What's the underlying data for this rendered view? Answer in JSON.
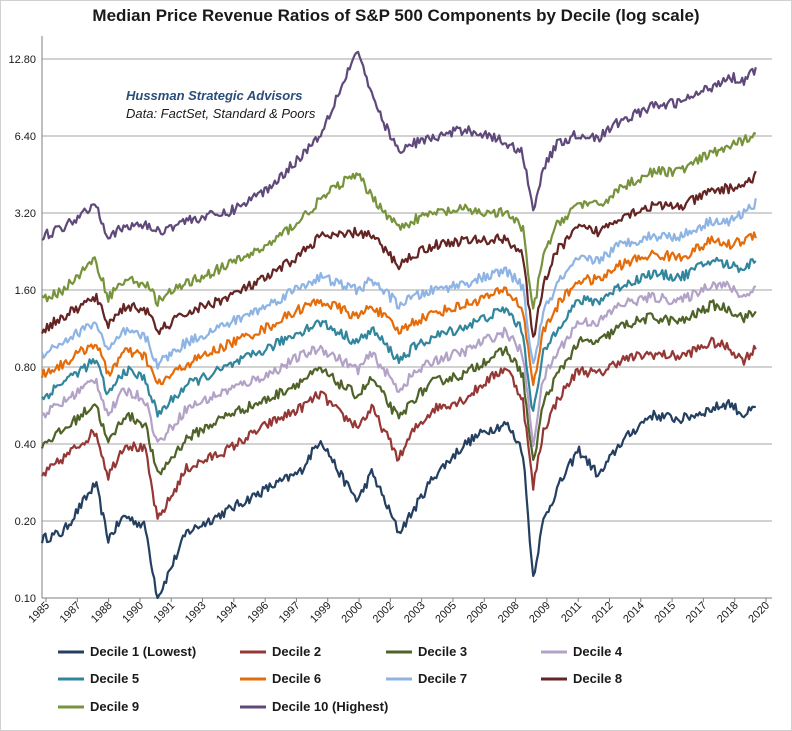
{
  "chart_data": {
    "type": "line",
    "title": "Median Price Revenue Ratios of S&P 500 Components by Decile (log scale)",
    "annotations": [
      "Hussman Strategic Advisors",
      "Data: FactSet, Standard & Poors"
    ],
    "yscale": "log",
    "ylim": [
      0.1,
      12.8
    ],
    "yticks": [
      "0.10",
      "0.20",
      "0.40",
      "0.80",
      "1.60",
      "3.20",
      "6.40",
      "12.80"
    ],
    "xticks": [
      "1985",
      "1987",
      "1988",
      "1990",
      "1991",
      "1993",
      "1994",
      "1996",
      "1997",
      "1999",
      "2000",
      "2002",
      "2003",
      "2005",
      "2006",
      "2008",
      "2009",
      "2011",
      "2012",
      "2014",
      "2015",
      "2017",
      "2018",
      "2020"
    ],
    "xlim": [
      1985.0,
      2019.9
    ],
    "grid": "horizontal",
    "legend_position": "bottom",
    "x": [
      1985.0,
      1986.0,
      1987.6,
      1988.2,
      1989.0,
      1990.0,
      1990.6,
      1992.0,
      1994.0,
      1996.0,
      1997.5,
      1998.5,
      1999.5,
      2000.3,
      2001.0,
      2002.3,
      2003.0,
      2004.0,
      2005.5,
      2006.5,
      2007.5,
      2008.3,
      2008.8,
      2009.3,
      2010.0,
      2011.0,
      2012.0,
      2013.0,
      2014.5,
      2016.0,
      2017.5,
      2018.3,
      2019.0,
      2019.6
    ],
    "series": [
      {
        "name": "Decile 1 (Lowest)",
        "color": "#243f60",
        "values": [
          0.17,
          0.18,
          0.28,
          0.17,
          0.21,
          0.19,
          0.1,
          0.18,
          0.22,
          0.27,
          0.31,
          0.42,
          0.3,
          0.24,
          0.31,
          0.18,
          0.22,
          0.3,
          0.4,
          0.45,
          0.48,
          0.38,
          0.12,
          0.2,
          0.27,
          0.38,
          0.3,
          0.4,
          0.52,
          0.5,
          0.55,
          0.58,
          0.52,
          0.55
        ]
      },
      {
        "name": "Decile 2",
        "color": "#953735",
        "values": [
          0.3,
          0.35,
          0.45,
          0.3,
          0.4,
          0.38,
          0.2,
          0.32,
          0.38,
          0.48,
          0.55,
          0.63,
          0.52,
          0.47,
          0.55,
          0.35,
          0.45,
          0.55,
          0.6,
          0.7,
          0.8,
          0.6,
          0.27,
          0.45,
          0.6,
          0.78,
          0.75,
          0.85,
          0.9,
          0.88,
          1.0,
          0.95,
          0.85,
          0.95
        ]
      },
      {
        "name": "Decile 3",
        "color": "#4f6228",
        "values": [
          0.4,
          0.45,
          0.58,
          0.4,
          0.52,
          0.48,
          0.3,
          0.42,
          0.52,
          0.6,
          0.7,
          0.78,
          0.68,
          0.62,
          0.72,
          0.5,
          0.6,
          0.7,
          0.75,
          0.85,
          0.93,
          0.75,
          0.33,
          0.58,
          0.75,
          1.0,
          1.0,
          1.15,
          1.25,
          1.2,
          1.4,
          1.35,
          1.25,
          1.3
        ]
      },
      {
        "name": "Decile 4",
        "color": "#b3a2c7",
        "values": [
          0.52,
          0.58,
          0.72,
          0.52,
          0.65,
          0.6,
          0.4,
          0.55,
          0.65,
          0.75,
          0.88,
          0.95,
          0.85,
          0.78,
          0.9,
          0.65,
          0.75,
          0.85,
          0.92,
          1.02,
          1.1,
          0.9,
          0.4,
          0.72,
          0.92,
          1.2,
          1.2,
          1.4,
          1.5,
          1.45,
          1.7,
          1.65,
          1.5,
          1.65
        ]
      },
      {
        "name": "Decile 5",
        "color": "#31859c",
        "values": [
          0.6,
          0.7,
          0.85,
          0.62,
          0.78,
          0.72,
          0.52,
          0.68,
          0.8,
          0.95,
          1.1,
          1.2,
          1.08,
          1.0,
          1.12,
          0.85,
          0.95,
          1.05,
          1.15,
          1.25,
          1.35,
          1.1,
          0.52,
          0.9,
          1.15,
          1.45,
          1.45,
          1.65,
          1.85,
          1.8,
          2.1,
          2.0,
          1.95,
          2.1
        ]
      },
      {
        "name": "Decile 6",
        "color": "#e46c0a",
        "values": [
          0.75,
          0.82,
          1.0,
          0.75,
          0.92,
          0.88,
          0.68,
          0.82,
          0.98,
          1.15,
          1.35,
          1.45,
          1.35,
          1.25,
          1.4,
          1.1,
          1.2,
          1.3,
          1.4,
          1.5,
          1.6,
          1.35,
          0.68,
          1.1,
          1.4,
          1.75,
          1.75,
          2.0,
          2.2,
          2.15,
          2.5,
          2.4,
          2.5,
          2.65
        ]
      },
      {
        "name": "Decile 7",
        "color": "#8eb4e3",
        "values": [
          0.9,
          1.0,
          1.2,
          0.92,
          1.1,
          1.05,
          0.82,
          1.0,
          1.18,
          1.4,
          1.65,
          1.8,
          1.68,
          1.6,
          1.75,
          1.4,
          1.5,
          1.6,
          1.7,
          1.8,
          1.9,
          1.65,
          0.8,
          1.3,
          1.7,
          2.1,
          2.1,
          2.4,
          2.6,
          2.6,
          3.0,
          2.95,
          3.2,
          3.5
        ]
      },
      {
        "name": "Decile 8",
        "color": "#632423",
        "values": [
          1.12,
          1.25,
          1.5,
          1.18,
          1.38,
          1.35,
          1.1,
          1.3,
          1.5,
          1.8,
          2.2,
          2.6,
          2.6,
          2.7,
          2.6,
          2.0,
          2.2,
          2.4,
          2.5,
          2.5,
          2.55,
          2.2,
          1.0,
          1.7,
          2.3,
          2.8,
          2.7,
          3.1,
          3.4,
          3.4,
          3.9,
          4.0,
          4.1,
          4.5
        ]
      },
      {
        "name": "Decile 9",
        "color": "#77933c",
        "values": [
          1.45,
          1.6,
          2.1,
          1.5,
          1.75,
          1.7,
          1.45,
          1.7,
          2.0,
          2.4,
          3.0,
          3.6,
          4.2,
          4.5,
          3.7,
          2.8,
          3.0,
          3.2,
          3.3,
          3.2,
          3.2,
          2.8,
          1.3,
          2.2,
          2.9,
          3.5,
          3.4,
          4.0,
          4.6,
          4.7,
          5.5,
          5.8,
          6.1,
          6.7
        ]
      },
      {
        "name": "Decile 10 (Highest)",
        "color": "#5f497a",
        "values": [
          2.6,
          2.8,
          3.5,
          2.6,
          2.8,
          2.9,
          2.7,
          3.0,
          3.2,
          4.0,
          5.3,
          6.5,
          10.0,
          14.0,
          9.0,
          5.5,
          6.0,
          6.3,
          6.8,
          6.5,
          6.0,
          5.5,
          3.3,
          4.8,
          6.0,
          6.5,
          6.3,
          7.3,
          8.3,
          8.7,
          10.0,
          11.0,
          10.5,
          11.8
        ]
      }
    ]
  }
}
